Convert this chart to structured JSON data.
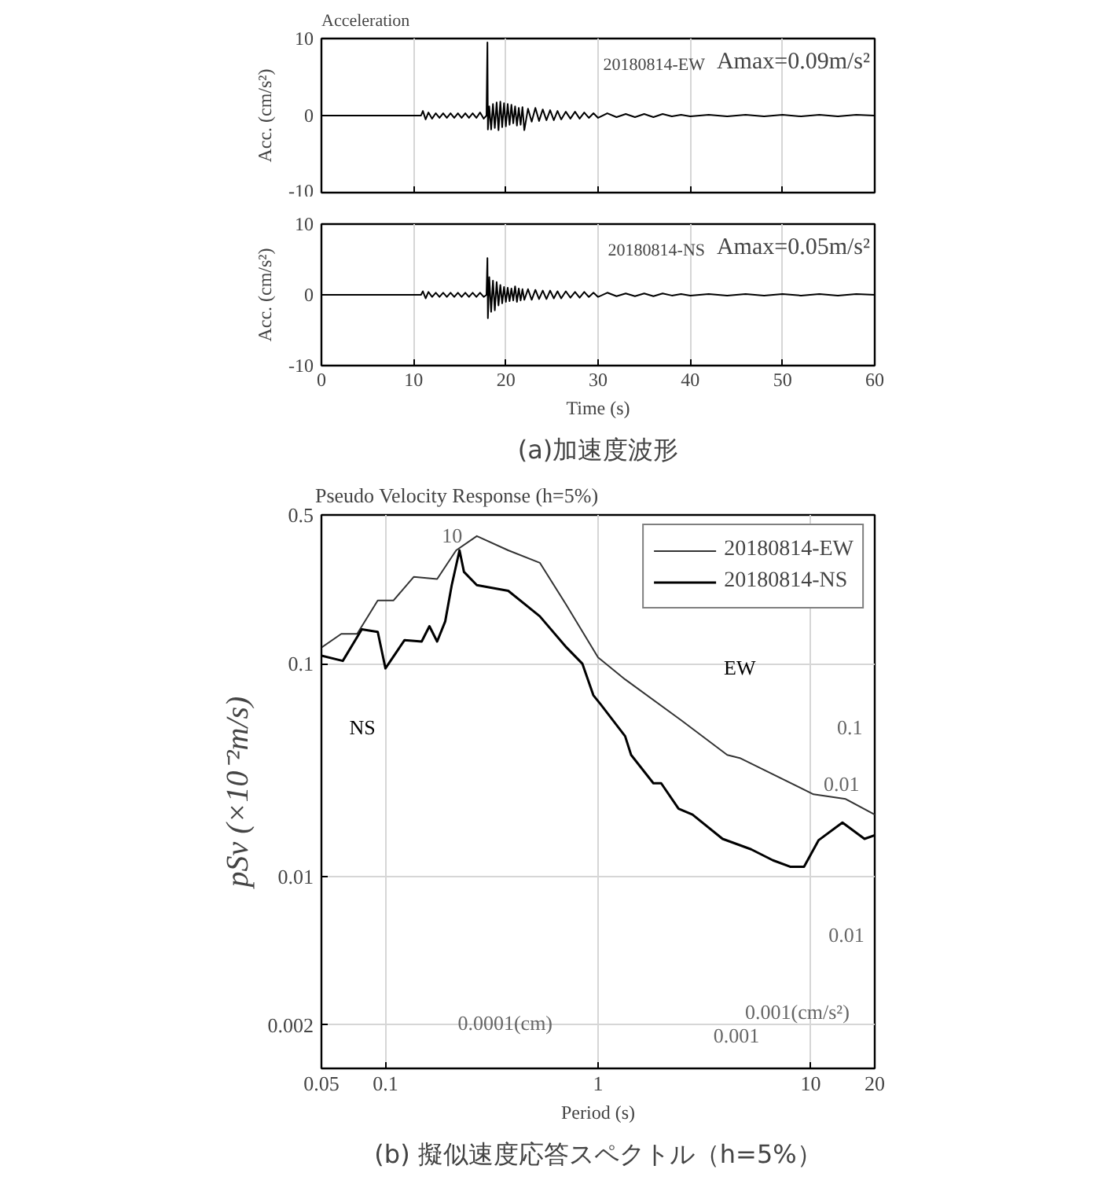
{
  "chart_data": [
    {
      "type": "line",
      "title": "Acceleration",
      "subtitle": "Amax=0.09m/s²",
      "ylabel": "Acc. (cm/s²)",
      "xlim": [
        0,
        60
      ],
      "ylim": [
        -10,
        10
      ],
      "xticks": [
        0,
        10,
        20,
        30,
        40,
        50,
        60
      ],
      "yticks": [
        -10,
        0,
        10
      ],
      "tick_labels": "y",
      "grid": "x",
      "legend": false,
      "x": [
        0,
        10.8,
        11,
        11.3,
        11.6,
        12,
        12.4,
        12.8,
        13.2,
        13.6,
        14,
        14.4,
        14.8,
        15.2,
        15.6,
        16,
        16.4,
        16.8,
        17.2,
        17.6,
        17.9,
        18,
        18.05,
        18.2,
        18.4,
        18.6,
        18.8,
        19,
        19.2,
        19.4,
        19.6,
        19.8,
        20,
        20.2,
        20.4,
        20.6,
        20.8,
        21,
        21.2,
        21.4,
        21.6,
        21.8,
        22,
        22.4,
        22.8,
        23.2,
        23.6,
        24,
        24.4,
        24.8,
        25.2,
        25.6,
        26,
        26.5,
        27,
        27.5,
        28,
        28.5,
        29,
        29.5,
        30,
        31,
        32,
        33,
        34,
        35,
        36,
        37,
        38,
        39,
        40,
        42,
        44,
        46,
        48,
        50,
        52,
        54,
        56,
        58,
        60
      ],
      "series": [
        {
          "name": "20180814-EW",
          "color": "#000000",
          "values": [
            0,
            0,
            0.6,
            -0.5,
            0.4,
            -0.4,
            0.3,
            -0.3,
            0.3,
            -0.3,
            0.3,
            -0.3,
            0.3,
            -0.3,
            0.3,
            -0.3,
            0.3,
            -0.3,
            0.4,
            -0.4,
            0,
            9.5,
            -1.8,
            1.2,
            -1.8,
            1.5,
            -1.6,
            1.7,
            -1.9,
            1.8,
            -1.5,
            1.6,
            -1.4,
            1.5,
            -1.2,
            1.4,
            -1.0,
            1.2,
            -1.3,
            1.0,
            -1.2,
            1.1,
            -1.9,
            0.9,
            -0.8,
            1.0,
            -0.7,
            0.8,
            -0.6,
            0.7,
            -0.6,
            0.6,
            -0.5,
            0.5,
            -0.4,
            0.5,
            -0.4,
            0.4,
            -0.3,
            0.3,
            -0.3,
            0.3,
            -0.2,
            0.2,
            -0.2,
            0.2,
            -0.2,
            0.2,
            -0.1,
            0.1,
            -0.1,
            0.1,
            -0.1,
            0.1,
            -0.1,
            0.1,
            -0.1,
            0.1,
            -0.1,
            0.1,
            0
          ]
        }
      ]
    },
    {
      "type": "line",
      "subtitle": "Amax=0.05m/s²",
      "xlabel": "Time (s)",
      "ylabel": "Acc. (cm/s²)",
      "xlim": [
        0,
        60
      ],
      "ylim": [
        -10,
        10
      ],
      "xticks": [
        0,
        10,
        20,
        30,
        40,
        50,
        60
      ],
      "yticks": [
        -10,
        0,
        10
      ],
      "grid": "x",
      "legend": false,
      "annotations": [
        "(a)加速度波形"
      ],
      "x": [
        0,
        10.8,
        11,
        11.3,
        11.6,
        12,
        12.4,
        12.8,
        13.2,
        13.6,
        14,
        14.4,
        14.8,
        15.2,
        15.6,
        16,
        16.4,
        16.8,
        17.2,
        17.6,
        17.9,
        18,
        18.05,
        18.2,
        18.4,
        18.6,
        18.8,
        19,
        19.2,
        19.4,
        19.6,
        19.8,
        20,
        20.2,
        20.4,
        20.6,
        20.8,
        21,
        21.2,
        21.4,
        21.6,
        21.8,
        22,
        22.4,
        22.8,
        23.2,
        23.6,
        24,
        24.4,
        24.8,
        25.2,
        25.6,
        26,
        26.5,
        27,
        27.5,
        28,
        28.5,
        29,
        29.5,
        30,
        31,
        32,
        33,
        34,
        35,
        36,
        37,
        38,
        39,
        40,
        42,
        44,
        46,
        48,
        50,
        52,
        54,
        56,
        58,
        60
      ],
      "series": [
        {
          "name": "20180814-NS",
          "color": "#000000",
          "values": [
            0,
            0,
            0.5,
            -0.5,
            0.4,
            -0.3,
            0.3,
            -0.3,
            0.3,
            -0.3,
            0.3,
            -0.3,
            0.3,
            -0.3,
            0.3,
            -0.3,
            0.3,
            -0.3,
            0.3,
            -0.3,
            0,
            5.2,
            -3.3,
            2.5,
            -2.4,
            2.0,
            -2.2,
            1.8,
            -1.5,
            1.4,
            -1.2,
            1.1,
            -1.0,
            1.0,
            -0.9,
            0.9,
            -0.8,
            1.2,
            -1.0,
            0.9,
            -0.8,
            0.8,
            -0.7,
            0.8,
            -0.7,
            0.7,
            -0.6,
            0.6,
            -0.6,
            0.6,
            -0.5,
            0.5,
            -0.5,
            0.5,
            -0.4,
            0.4,
            -0.4,
            0.4,
            -0.3,
            0.3,
            -0.3,
            0.3,
            -0.2,
            0.2,
            -0.2,
            0.2,
            -0.2,
            0.2,
            -0.1,
            0.1,
            -0.1,
            0.1,
            -0.1,
            0.1,
            -0.1,
            0.1,
            -0.1,
            0.1,
            -0.1,
            0.1,
            0
          ]
        }
      ]
    },
    {
      "type": "line",
      "title": "Pseudo Velocity Response (h=5%)",
      "xlabel": "Period (s)",
      "ylabel": "pSv (×10⁻²m/s)",
      "log": "xy",
      "xlim": [
        0.05,
        20
      ],
      "ylim": [
        0.00125,
        0.5
      ],
      "xticks": [
        0.05,
        0.1,
        1,
        10,
        20
      ],
      "yticks": [
        0.002,
        0.01,
        0.1,
        0.5
      ],
      "grid": true,
      "legend": "top right",
      "annotations": [
        "NS",
        "EW",
        "10",
        "0.1",
        "0.01",
        "0.01",
        "0.001(cm/s²)",
        "0.001",
        "0.0001(cm)",
        "(b) 擬似速度応答スペクトル（h=5%）"
      ],
      "series": [
        {
          "name": "20180814-EW",
          "color": "#333333",
          "x": [
            0.05,
            0.062,
            0.0736,
            0.092,
            0.109,
            0.136,
            0.175,
            0.215,
            0.269,
            0.378,
            0.532,
            0.711,
            1,
            1.34,
            2.47,
            4.05,
            4.64,
            10.3,
            14.6,
            20
          ],
          "values": [
            0.119,
            0.138,
            0.138,
            0.198,
            0.198,
            0.256,
            0.25,
            0.341,
            0.398,
            0.341,
            0.298,
            0.188,
            0.107,
            0.0843,
            0.054,
            0.0372,
            0.036,
            0.0243,
            0.0231,
            0.0195
          ]
        },
        {
          "name": "20180814-NS",
          "color": "#000000",
          "x": [
            0.05,
            0.063,
            0.0774,
            0.092,
            0.1,
            0.123,
            0.148,
            0.161,
            0.175,
            0.191,
            0.205,
            0.223,
            0.234,
            0.269,
            0.378,
            0.532,
            0.711,
            0.843,
            0.95,
            1.03,
            1.34,
            1.43,
            1.82,
            1.98,
            2.39,
            2.78,
            3.85,
            5.24,
            6.64,
            8.0,
            9.3,
            10.9,
            14.1,
            17.9,
            20
          ],
          "values": [
            0.109,
            0.103,
            0.145,
            0.141,
            0.095,
            0.129,
            0.127,
            0.15,
            0.127,
            0.158,
            0.234,
            0.341,
            0.27,
            0.234,
            0.22,
            0.167,
            0.119,
            0.1,
            0.071,
            0.0642,
            0.0456,
            0.0372,
            0.0274,
            0.0274,
            0.0208,
            0.0195,
            0.015,
            0.0134,
            0.0119,
            0.0111,
            0.0111,
            0.0148,
            0.0179,
            0.015,
            0.0156
          ]
        }
      ]
    }
  ]
}
